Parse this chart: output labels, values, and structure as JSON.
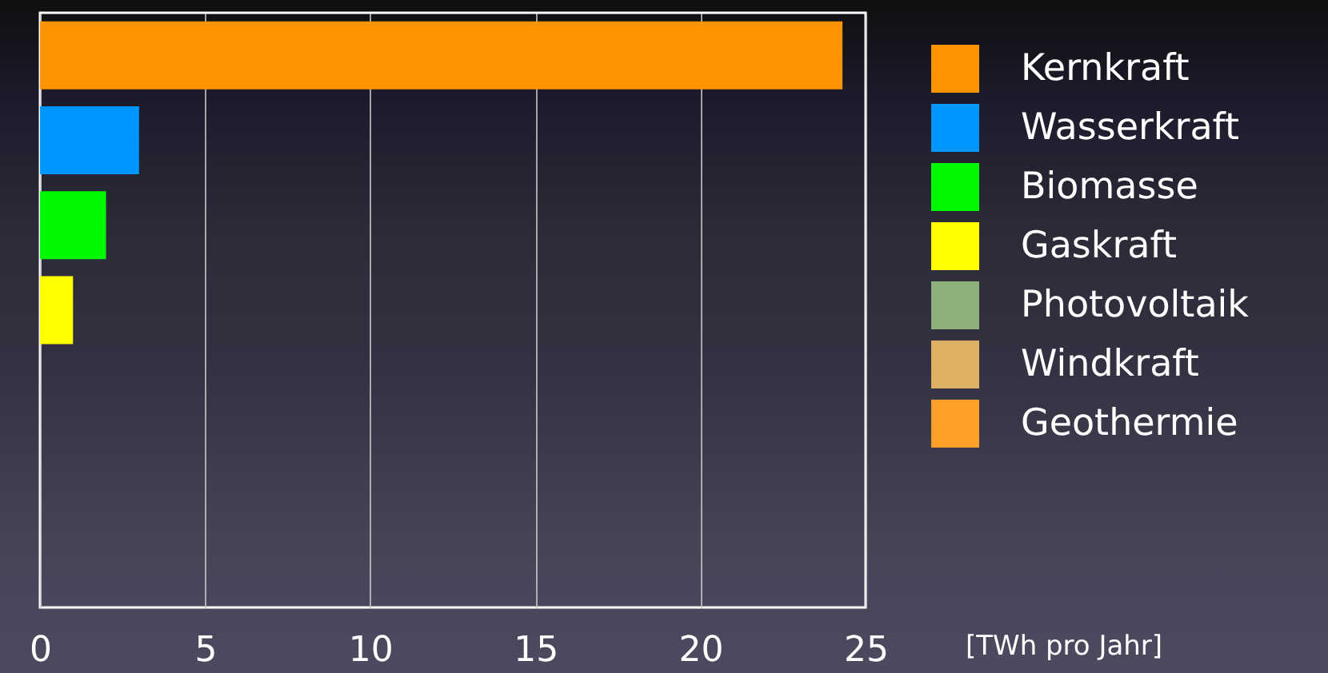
{
  "chart_data": {
    "type": "bar",
    "orientation": "horizontal",
    "xlabel": "[TWh pro Jahr]",
    "categories": [
      null,
      null,
      null,
      null,
      null,
      null,
      null
    ],
    "series": [
      {
        "name": "Kernkraft",
        "color": "#ff9400",
        "values": [
          24.3,
          null,
          null,
          null,
          null,
          null,
          null
        ]
      },
      {
        "name": "Wasserkraft",
        "color": "#0096ff",
        "values": [
          null,
          3.0,
          null,
          null,
          null,
          null,
          null
        ]
      },
      {
        "name": "Biomasse",
        "color": "#00f900",
        "values": [
          null,
          null,
          2.0,
          null,
          null,
          null,
          null
        ]
      },
      {
        "name": "Gaskraft",
        "color": "#ffff00",
        "values": [
          null,
          null,
          null,
          1.0,
          null,
          null,
          null
        ]
      },
      {
        "name": "Photovoltaik",
        "color": "#8db07a",
        "values": [
          null,
          null,
          null,
          null,
          0,
          null,
          null
        ]
      },
      {
        "name": "Windkraft",
        "color": "#deb064",
        "values": [
          null,
          null,
          null,
          null,
          null,
          0,
          null
        ]
      },
      {
        "name": "Geothermie",
        "color": "#ffa028",
        "values": [
          null,
          null,
          null,
          null,
          null,
          null,
          0
        ]
      }
    ],
    "xlim": [
      0,
      25
    ],
    "xticks": [
      0,
      5,
      10,
      15,
      20,
      25
    ],
    "grid": "x",
    "legend": "right",
    "tick_labels": "x"
  }
}
